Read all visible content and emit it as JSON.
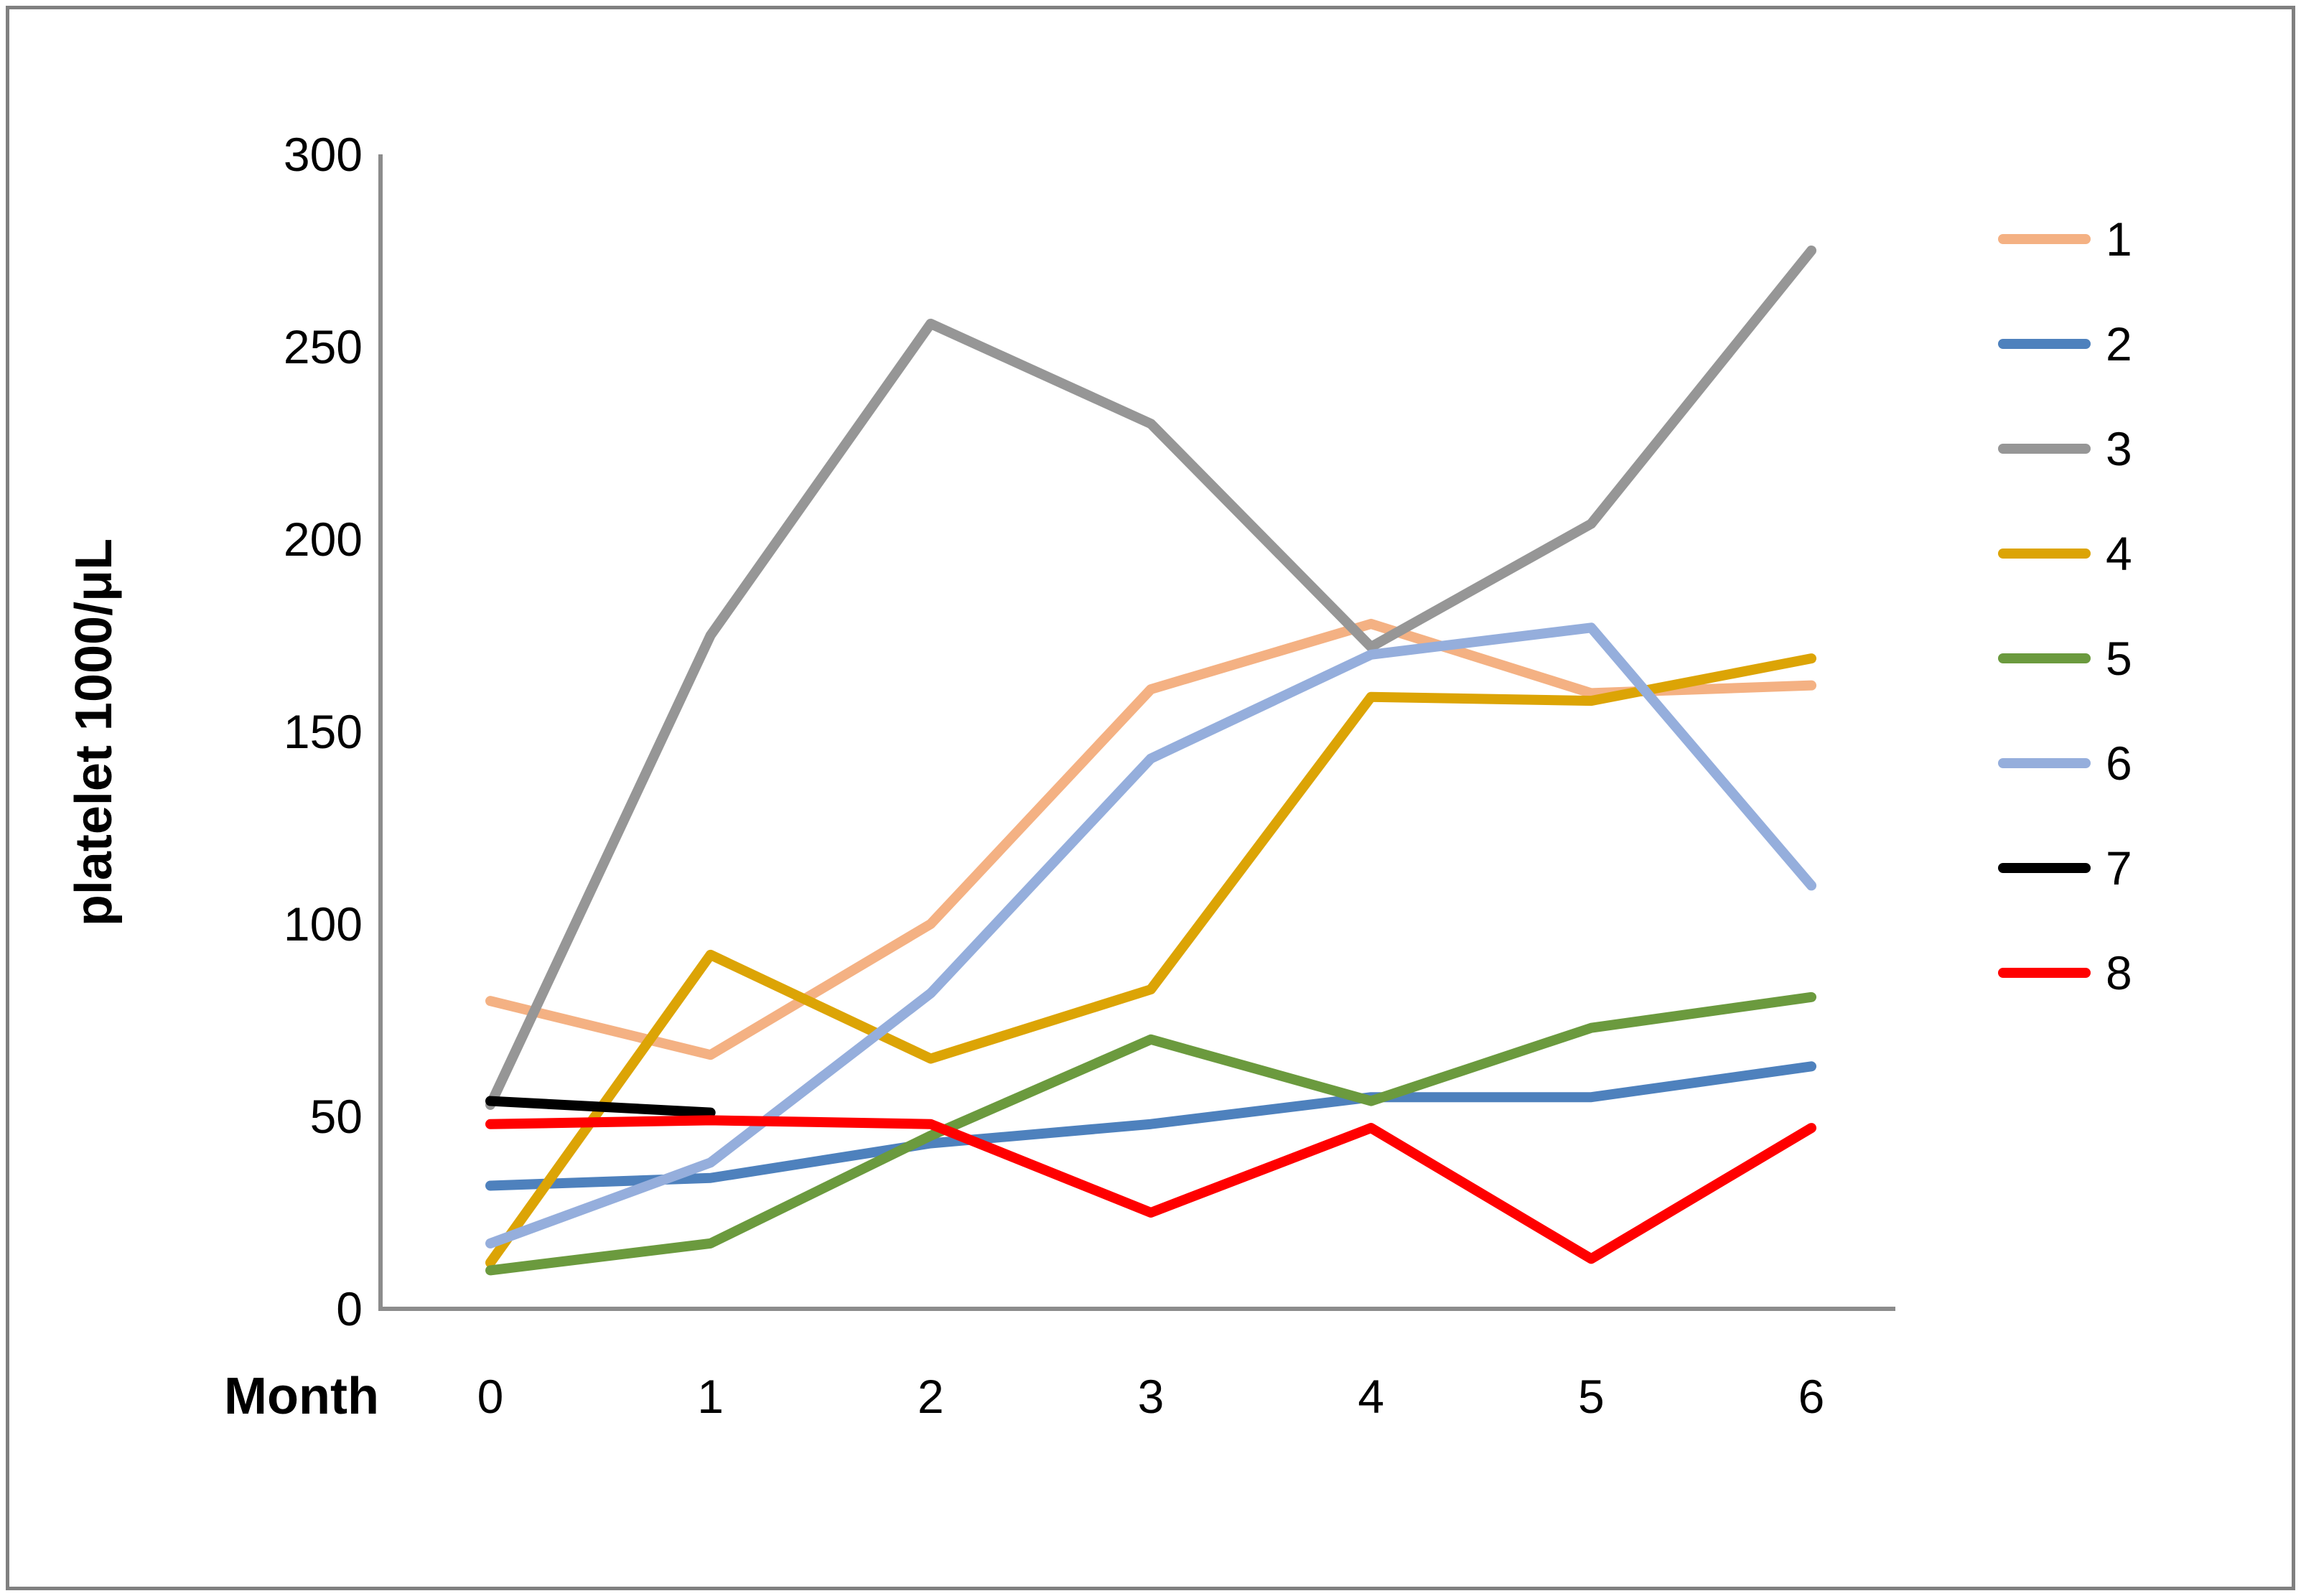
{
  "chart_data": {
    "type": "line",
    "title": "",
    "x_axis_title": "Month",
    "y_axis_title": "platelet 1000/μL",
    "x": [
      0,
      1,
      2,
      3,
      4,
      5,
      6
    ],
    "x_tick_labels": [
      "0",
      "1",
      "2",
      "3",
      "4",
      "5",
      "6"
    ],
    "y_ticks": [
      0,
      50,
      100,
      150,
      200,
      250,
      300
    ],
    "y_tick_labels": [
      "0",
      "50",
      "100",
      "150",
      "200",
      "250",
      "300"
    ],
    "ylim": [
      0,
      300
    ],
    "grid": false,
    "legend_position": "right",
    "series": [
      {
        "name": "1",
        "color": "#F4B183",
        "values": [
          80,
          66,
          100,
          161,
          178,
          160,
          162
        ]
      },
      {
        "name": "2",
        "color": "#4E81BD",
        "values": [
          32,
          34,
          43,
          48,
          55,
          55,
          63
        ]
      },
      {
        "name": "3",
        "color": "#969696",
        "values": [
          53,
          175,
          256,
          230,
          172,
          204,
          275
        ]
      },
      {
        "name": "4",
        "color": "#DCA405",
        "values": [
          12,
          92,
          65,
          83,
          159,
          158,
          169
        ]
      },
      {
        "name": "5",
        "color": "#6B9A3E",
        "values": [
          10,
          17,
          45,
          70,
          54,
          73,
          81
        ]
      },
      {
        "name": "6",
        "color": "#95AEDC",
        "values": [
          17,
          38,
          82,
          143,
          170,
          177,
          110
        ]
      },
      {
        "name": "7",
        "color": "#000000",
        "values": [
          54,
          51,
          null,
          null,
          null,
          null,
          null
        ]
      },
      {
        "name": "8",
        "color": "#FF0000",
        "values": [
          48,
          49,
          48,
          25,
          47,
          13,
          47
        ]
      }
    ],
    "axis_color": "#8C8C8C"
  }
}
